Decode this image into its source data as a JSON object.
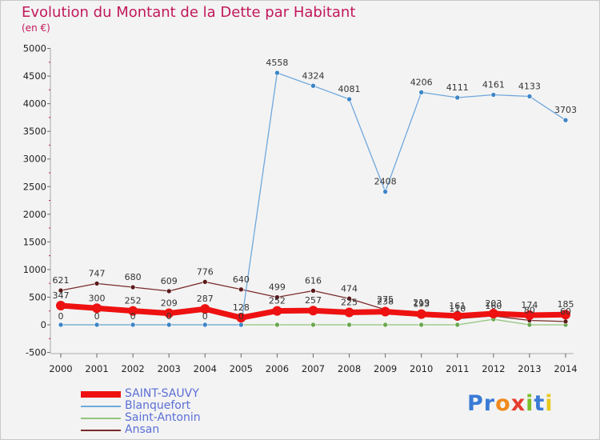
{
  "header": {
    "title": "Evolution du Montant de la Dette par Habitant",
    "subtitle": "(en €)"
  },
  "logo": {
    "text": "Proxiti",
    "colors": [
      "#3a7bd5",
      "#3a7bd5",
      "#f08a1c",
      "#e63c2f",
      "#7bbf2a",
      "#3a7bd5",
      "#e8c81c"
    ]
  },
  "chart_data": {
    "type": "line",
    "title": "Evolution du Montant de la Dette par Habitant",
    "subtitle": "(en €)",
    "xlabel": "",
    "ylabel": "",
    "ylim": [
      -500,
      5000
    ],
    "yticks": [
      -500,
      0,
      500,
      1000,
      1500,
      2000,
      2500,
      3000,
      3500,
      4000,
      4500,
      5000
    ],
    "categories": [
      "2000",
      "2001",
      "2002",
      "2003",
      "2004",
      "2005",
      "2006",
      "2007",
      "2008",
      "2009",
      "2010",
      "2011",
      "2012",
      "2013",
      "2014"
    ],
    "grid": false,
    "legend_position": "bottom-left",
    "series": [
      {
        "name": "SAINT-SAUVY",
        "color": "#ee1111",
        "point_color": "#ee1111",
        "width": 7,
        "values": [
          347,
          300,
          252,
          209,
          287,
          128,
          252,
          257,
          225,
          238,
          193,
          161,
          203,
          174,
          185
        ],
        "labels": [
          "347",
          "300",
          "252",
          "209",
          "287",
          "128",
          "252",
          "257",
          "225",
          "238",
          "193",
          "161",
          "203",
          "174",
          "185"
        ]
      },
      {
        "name": "Blanquefort",
        "color": "#6fa8dc",
        "point_color": "#3d85c6",
        "width": 1.3,
        "values": [
          0,
          0,
          0,
          0,
          0,
          0,
          4558,
          4324,
          4081,
          2408,
          4206,
          4111,
          4161,
          4133,
          3703
        ],
        "labels": [
          "0",
          "0",
          "0",
          "0",
          "0",
          "0",
          "4558",
          "4324",
          "4081",
          "2408",
          "4206",
          "4111",
          "4161",
          "4133",
          "3703"
        ]
      },
      {
        "name": "Saint-Antonin",
        "color": "#93c47d",
        "point_color": "#6aa84f",
        "width": 1.3,
        "values": [
          0,
          0,
          0,
          0,
          0,
          0,
          0,
          0,
          0,
          0,
          0,
          0,
          100,
          0,
          0
        ],
        "labels": []
      },
      {
        "name": "Ansan",
        "color": "#7a2b2b",
        "point_color": "#5b1a1a",
        "width": 1.3,
        "values": [
          621,
          747,
          680,
          609,
          776,
          640,
          499,
          616,
          474,
          275,
          219,
          110,
          160,
          80,
          60
        ],
        "labels": [
          "621",
          "747",
          "680",
          "609",
          "776",
          "640",
          "499",
          "616",
          "474",
          "275",
          "219",
          "110",
          "160",
          "80",
          "60"
        ]
      }
    ]
  }
}
